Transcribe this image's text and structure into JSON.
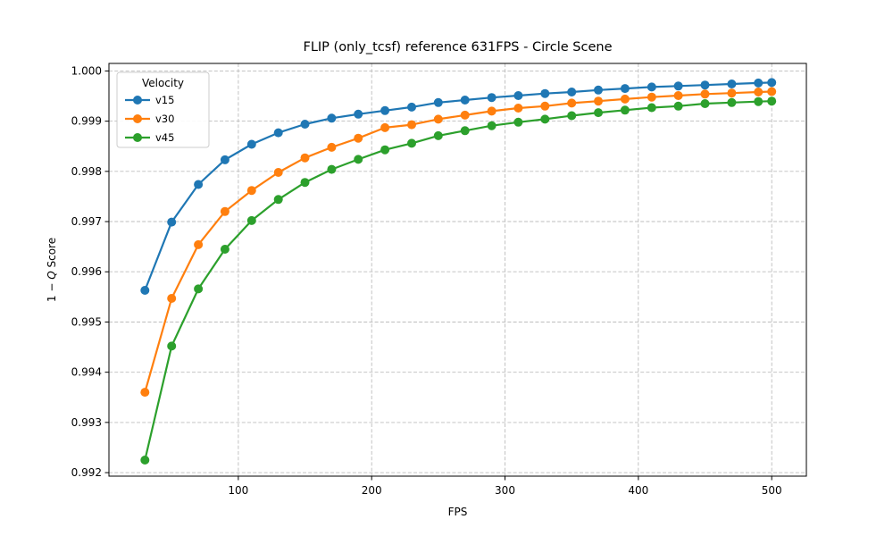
{
  "chart_data": {
    "type": "line",
    "title": "FLIP (only_tcsf) reference 631FPS - Circle Scene",
    "xlabel": "FPS",
    "ylabel": "1 − Q Score",
    "legend_title": "Velocity",
    "legend_position": "upper left",
    "grid": true,
    "grid_color": "#bdbdbd",
    "axis_color": "#000000",
    "xlim": [
      3,
      526
    ],
    "ylim": [
      0.99193,
      1.00015
    ],
    "xticks": [
      "100",
      "200",
      "300",
      "400",
      "500"
    ],
    "yticks": [
      "0.992",
      "0.993",
      "0.994",
      "0.995",
      "0.996",
      "0.997",
      "0.998",
      "0.999",
      "1.000"
    ],
    "x": [
      30,
      50,
      70,
      90,
      110,
      130,
      150,
      170,
      190,
      210,
      230,
      250,
      270,
      290,
      310,
      330,
      350,
      370,
      390,
      410,
      430,
      450,
      470,
      490,
      500
    ],
    "series": [
      {
        "name": "v15",
        "color": "#1f77b4",
        "values": [
          0.99563,
          0.99699,
          0.99774,
          0.99823,
          0.99854,
          0.99877,
          0.99894,
          0.99906,
          0.99914,
          0.99921,
          0.99928,
          0.99937,
          0.99942,
          0.99947,
          0.99951,
          0.99955,
          0.99958,
          0.99962,
          0.99965,
          0.99968,
          0.9997,
          0.99972,
          0.99974,
          0.99976,
          0.99977
        ]
      },
      {
        "name": "v30",
        "color": "#ff7f0e",
        "values": [
          0.9936,
          0.99547,
          0.99654,
          0.9972,
          0.99762,
          0.99798,
          0.99827,
          0.99848,
          0.99866,
          0.99887,
          0.99893,
          0.99904,
          0.99912,
          0.9992,
          0.99926,
          0.9993,
          0.99936,
          0.9994,
          0.99944,
          0.99948,
          0.99951,
          0.99954,
          0.99956,
          0.99958,
          0.99959
        ]
      },
      {
        "name": "v45",
        "color": "#2ca02c",
        "values": [
          0.99225,
          0.99452,
          0.99566,
          0.99645,
          0.99702,
          0.99744,
          0.99778,
          0.99804,
          0.99824,
          0.99843,
          0.99856,
          0.99871,
          0.99881,
          0.99891,
          0.99898,
          0.99904,
          0.99911,
          0.99917,
          0.99922,
          0.99927,
          0.9993,
          0.99935,
          0.99937,
          0.99939,
          0.9994
        ]
      }
    ]
  }
}
